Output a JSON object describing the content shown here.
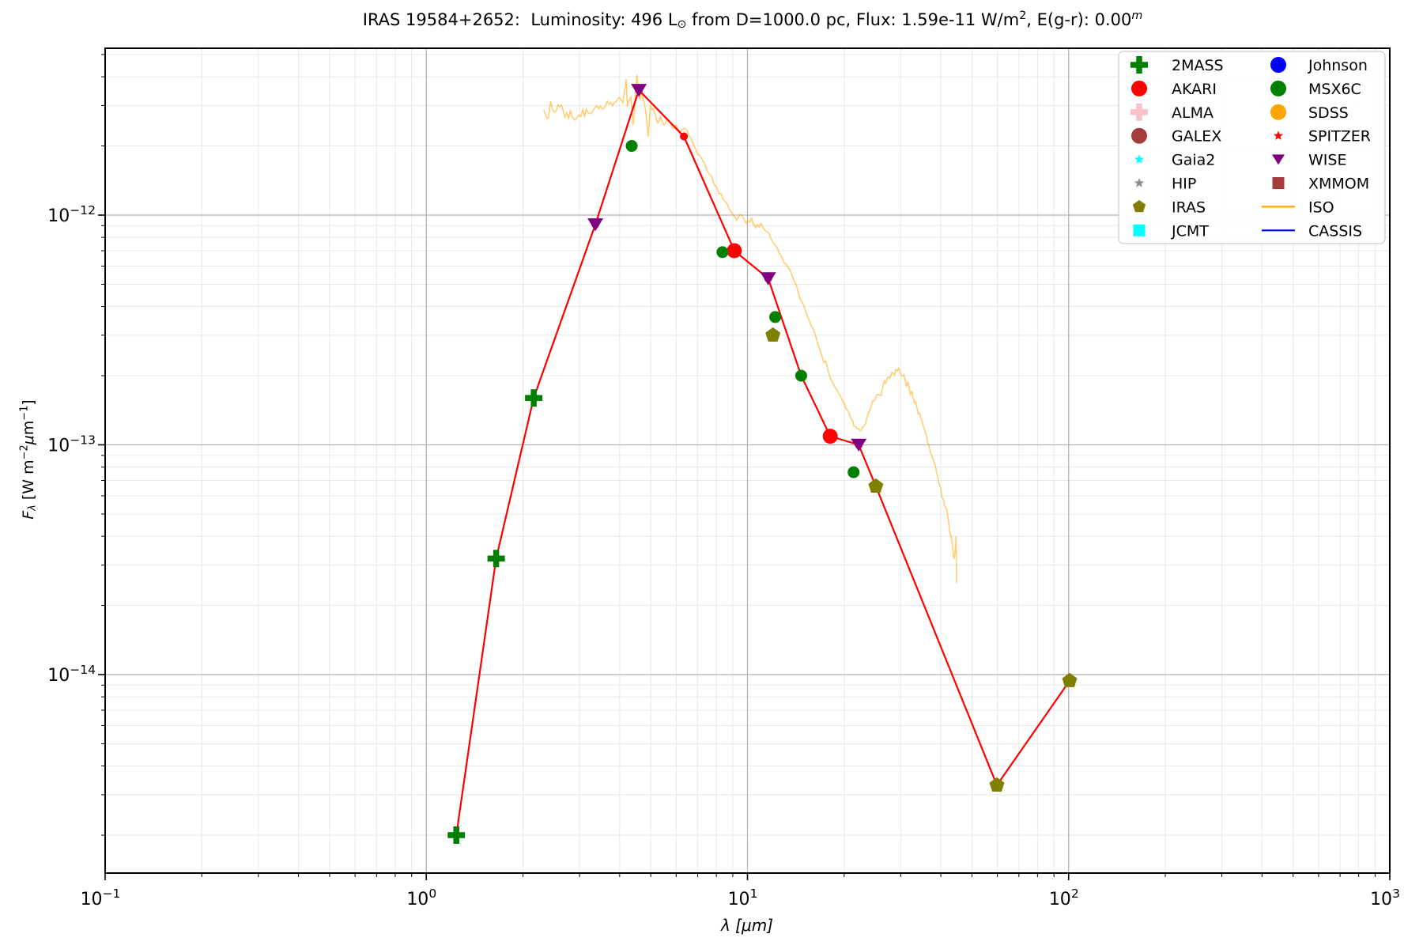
{
  "title_parts": [
    {
      "text": "IRAS 19584+2652:  Luminosity: 496 L"
    },
    {
      "text": "⊙",
      "style": "sub"
    },
    {
      "text": " from D=1000.0 pc, Flux: 1.59e-11 W/m"
    },
    {
      "text": "2",
      "style": "sup"
    },
    {
      "text": ", E(g-r): 0.00"
    },
    {
      "text": "m",
      "style": "sup-italic"
    }
  ],
  "chart_data": {
    "type": "scatter",
    "title": "IRAS 19584+2652:  Luminosity: 496 L_sun from D=1000.0 pc, Flux: 1.59e-11 W/m^2, E(g-r): 0.00^m",
    "xlabel_parts": [
      {
        "text": "λ [μm]",
        "style": "italic"
      }
    ],
    "ylabel_parts": [
      {
        "text": "F",
        "style": "italic"
      },
      {
        "text": "λ",
        "style": "sub-italic"
      },
      {
        "text": " [W m"
      },
      {
        "text": "−2",
        "style": "sup"
      },
      {
        "text": "μ",
        "style": "italic"
      },
      {
        "text": "m"
      },
      {
        "text": "−1",
        "style": "sup"
      },
      {
        "text": "]"
      }
    ],
    "x_axis": {
      "scale": "log",
      "min": 0.1,
      "max": 1000,
      "ticks": [
        {
          "value": 0.1,
          "exp": "−1"
        },
        {
          "value": 1,
          "exp": "0"
        },
        {
          "value": 10,
          "exp": "1"
        },
        {
          "value": 100,
          "exp": "2"
        },
        {
          "value": 1000,
          "exp": "3"
        }
      ]
    },
    "y_axis": {
      "scale": "log",
      "min": 1.37e-15,
      "max": 5.33e-12,
      "ticks": [
        {
          "value": 1e-12,
          "exp": "−12"
        },
        {
          "value": 1e-13,
          "exp": "−13"
        },
        {
          "value": 1e-14,
          "exp": "−14"
        }
      ]
    },
    "grid": {
      "major_color": "#b2b2b2",
      "minor_color": "#e8e8e8"
    },
    "series": [
      {
        "name": "2MASS",
        "marker": "plus",
        "color": "#008000",
        "points": [
          [
            1.24,
            2e-15
          ],
          [
            1.65,
            3.2e-14
          ],
          [
            2.16,
            1.6e-13
          ]
        ]
      },
      {
        "name": "AKARI",
        "marker": "circle",
        "color": "#ff0000",
        "points": [
          [
            9.1,
            7e-13
          ],
          [
            18.1,
            1.09e-13
          ]
        ]
      },
      {
        "name": "MSX6C",
        "marker": "circle",
        "color": "#008000",
        "points": [
          [
            4.36,
            2e-12
          ],
          [
            8.36,
            6.9e-13
          ],
          [
            12.2,
            3.6e-13
          ],
          [
            14.7,
            2e-13
          ],
          [
            21.4,
            7.6e-14
          ]
        ]
      },
      {
        "name": "WISE",
        "marker": "triangle-down",
        "color": "#800080",
        "points": [
          [
            3.36,
            9.1e-13
          ],
          [
            4.59,
            3.5e-12
          ],
          [
            11.6,
            5.3e-13
          ],
          [
            22.2,
            1e-13
          ]
        ]
      },
      {
        "name": "IRAS",
        "marker": "pentagon",
        "color": "#808000",
        "points": [
          [
            12.0,
            3e-13
          ],
          [
            25.1,
            6.6e-14
          ],
          [
            59.8,
            3.3e-15
          ],
          [
            100.7,
            9.4e-15
          ]
        ]
      }
    ],
    "sed_line": {
      "name": "photometry-connecting-line",
      "color": "#ff0000",
      "points": [
        [
          1.24,
          2e-15
        ],
        [
          1.65,
          3.2e-14
        ],
        [
          2.16,
          1.6e-13
        ],
        [
          3.36,
          9.1e-13
        ],
        [
          4.59,
          3.5e-12
        ],
        [
          6.34,
          2.2e-12
        ],
        [
          9.1,
          7e-13
        ],
        [
          11.6,
          5.3e-13
        ],
        [
          14.7,
          2e-13
        ],
        [
          18.1,
          1.09e-13
        ],
        [
          22.2,
          1e-13
        ],
        [
          25.1,
          6.6e-14
        ],
        [
          59.8,
          3.3e-15
        ],
        [
          100.7,
          9.4e-15
        ]
      ]
    },
    "iso_spectrum": {
      "name": "ISO",
      "color": "#ffa500",
      "opacity": 0.55,
      "points": [
        [
          2.32,
          2.89e-12
        ],
        [
          2.38,
          2.63e-12
        ],
        [
          2.44,
          3.13e-12
        ],
        [
          2.51,
          2.8e-12
        ],
        [
          2.6,
          2.96e-12
        ],
        [
          2.7,
          2.67e-12
        ],
        [
          2.81,
          2.85e-12
        ],
        [
          2.91,
          2.59e-12
        ],
        [
          3.03,
          2.69e-12
        ],
        [
          3.15,
          2.89e-12
        ],
        [
          3.26,
          2.77e-12
        ],
        [
          3.4,
          2.99e-12
        ],
        [
          3.53,
          2.89e-12
        ],
        [
          3.66,
          3.13e-12
        ],
        [
          3.8,
          2.99e-12
        ],
        [
          3.96,
          3.23e-12
        ],
        [
          4.09,
          3.08e-12
        ],
        [
          4.19,
          3.91e-12
        ],
        [
          4.23,
          2.96e-12
        ],
        [
          4.33,
          3.28e-12
        ],
        [
          4.41,
          2.47e-12
        ],
        [
          4.48,
          3.38e-12
        ],
        [
          4.53,
          4.08e-12
        ],
        [
          4.61,
          3.21e-12
        ],
        [
          4.69,
          3.38e-12
        ],
        [
          4.8,
          2.96e-12
        ],
        [
          4.91,
          2.19e-12
        ],
        [
          4.99,
          3.02e-12
        ],
        [
          5.14,
          2.8e-12
        ],
        [
          5.25,
          2.52e-12
        ],
        [
          5.37,
          2.69e-12
        ],
        [
          5.5,
          2.47e-12
        ],
        [
          5.65,
          2.59e-12
        ],
        [
          5.82,
          2.41e-12
        ],
        [
          5.98,
          2.46e-12
        ],
        [
          6.16,
          2.28e-12
        ],
        [
          6.37,
          2.39e-12
        ],
        [
          6.59,
          2.19e-12
        ],
        [
          6.82,
          2e-12
        ],
        [
          7.05,
          1.84e-12
        ],
        [
          7.3,
          1.7e-12
        ],
        [
          7.55,
          1.53e-12
        ],
        [
          7.81,
          1.41e-12
        ],
        [
          8.08,
          1.29e-12
        ],
        [
          8.36,
          1.19e-12
        ],
        [
          8.65,
          1.12e-12
        ],
        [
          8.95,
          1.02e-12
        ],
        [
          9.26,
          9.5e-13
        ],
        [
          9.58,
          1e-12
        ],
        [
          9.91,
          9.2e-13
        ],
        [
          10.3,
          9.7e-13
        ],
        [
          10.6,
          8.8e-13
        ],
        [
          11.0,
          9.2e-13
        ],
        [
          11.4,
          8.5e-13
        ],
        [
          11.8,
          8e-13
        ],
        [
          12.3,
          7.3e-13
        ],
        [
          12.7,
          6.7e-13
        ],
        [
          13.2,
          6.1e-13
        ],
        [
          13.8,
          5.4e-13
        ],
        [
          14.4,
          4.6e-13
        ],
        [
          15.1,
          3.9e-13
        ],
        [
          15.8,
          3.3e-13
        ],
        [
          16.5,
          2.8e-13
        ],
        [
          17.1,
          2.4e-13
        ],
        [
          17.7,
          2.2e-13
        ],
        [
          18.3,
          1.9e-13
        ],
        [
          18.9,
          1.75e-13
        ],
        [
          19.6,
          1.6e-13
        ],
        [
          20.2,
          1.45e-13
        ],
        [
          21.0,
          1.3e-13
        ],
        [
          21.7,
          1.2e-13
        ],
        [
          22.4,
          1.15e-13
        ],
        [
          23.0,
          1.2e-13
        ],
        [
          23.5,
          1.3e-13
        ],
        [
          24.0,
          1.4e-13
        ],
        [
          24.5,
          1.55e-13
        ],
        [
          25.7,
          1.65e-13
        ],
        [
          26.3,
          1.75e-13
        ],
        [
          26.9,
          1.85e-13
        ],
        [
          27.7,
          1.95e-13
        ],
        [
          28.4,
          2.05e-13
        ],
        [
          29.3,
          2.1e-13
        ],
        [
          30.1,
          2e-13
        ],
        [
          31.0,
          1.9e-13
        ],
        [
          31.9,
          1.75e-13
        ],
        [
          32.8,
          1.6e-13
        ],
        [
          33.7,
          1.45e-13
        ],
        [
          34.7,
          1.3e-13
        ],
        [
          35.7,
          1.15e-13
        ],
        [
          36.7,
          1e-13
        ],
        [
          37.8,
          8.7e-14
        ],
        [
          38.8,
          7.6e-14
        ],
        [
          40.0,
          6.5e-14
        ],
        [
          41.1,
          5.4e-14
        ],
        [
          42.3,
          4.6e-14
        ],
        [
          43.3,
          3.8e-14
        ],
        [
          44.0,
          3.2e-14
        ],
        [
          44.6,
          4e-14
        ],
        [
          44.8,
          2.5e-14
        ]
      ]
    },
    "legend": {
      "columns": 2,
      "entries": [
        {
          "label": "2MASS",
          "marker": "plus",
          "color": "#008000"
        },
        {
          "label": "AKARI",
          "marker": "circle",
          "color": "#ff0000"
        },
        {
          "label": "ALMA",
          "marker": "plus",
          "color": "#f8c1cb"
        },
        {
          "label": "GALEX",
          "marker": "circle",
          "color": "#a53c3c"
        },
        {
          "label": "Gaia2",
          "marker": "star",
          "color": "#00ffff"
        },
        {
          "label": "HIP",
          "marker": "star",
          "color": "#8c8c8c"
        },
        {
          "label": "IRAS",
          "marker": "pentagon",
          "color": "#808000"
        },
        {
          "label": "JCMT",
          "marker": "square",
          "color": "#00ffff"
        },
        {
          "label": "Johnson",
          "marker": "circle",
          "color": "#0000ff"
        },
        {
          "label": "MSX6C",
          "marker": "circle",
          "color": "#008000"
        },
        {
          "label": "SDSS",
          "marker": "circle",
          "color": "#ffa500"
        },
        {
          "label": "SPITZER",
          "marker": "star",
          "color": "#ff0000"
        },
        {
          "label": "WISE",
          "marker": "triangle-down",
          "color": "#800080"
        },
        {
          "label": "XMMOM",
          "marker": "square",
          "color": "#a53c3c"
        },
        {
          "label": "ISO",
          "marker": "line",
          "color": "#ffa500"
        },
        {
          "label": "CASSIS",
          "marker": "line",
          "color": "#0000ff"
        }
      ]
    }
  }
}
